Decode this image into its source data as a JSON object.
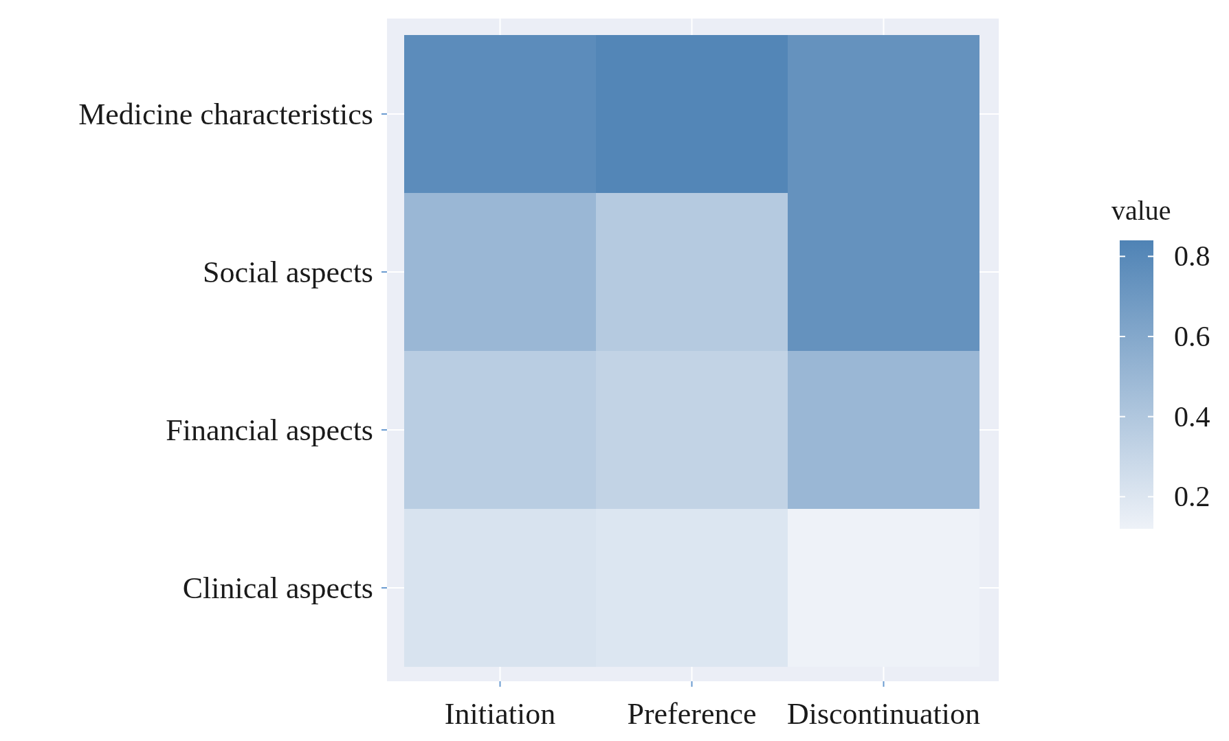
{
  "chart_data": {
    "type": "heatmap",
    "categories": [
      "Initiation",
      "Preference",
      "Discontinuation"
    ],
    "y_categories": [
      "Medicine characteristics",
      "Social aspects",
      "Financial aspects",
      "Clinical aspects"
    ],
    "cells": [
      [
        0.78,
        0.82,
        0.74
      ],
      [
        0.5,
        0.38,
        0.74
      ],
      [
        0.36,
        0.32,
        0.5
      ],
      [
        0.22,
        0.2,
        0.12
      ]
    ],
    "clabel": "value",
    "clim": [
      0.12,
      0.84
    ],
    "cticks": [
      0.2,
      0.4,
      0.6,
      0.8
    ],
    "grid": true
  }
}
